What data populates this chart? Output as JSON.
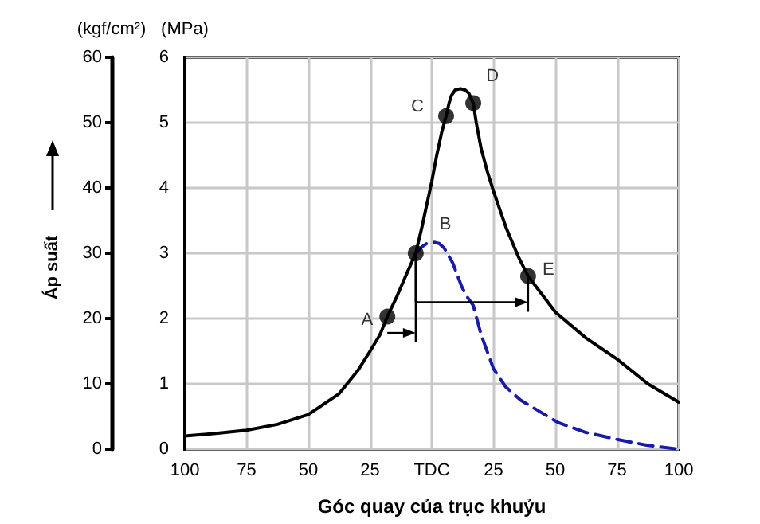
{
  "chart_data": {
    "type": "line",
    "xlabel": "Góc quay của trục khuỷu",
    "ylabel": "(MPa)",
    "y2label": "(kgf/cm²)",
    "xlim": [
      -100,
      100
    ],
    "xticks": [
      {
        "value": -100,
        "label": "100"
      },
      {
        "value": -75,
        "label": "75"
      },
      {
        "value": -50,
        "label": "50"
      },
      {
        "value": -25,
        "label": "25"
      },
      {
        "value": 0,
        "label": "TDC"
      },
      {
        "value": 25,
        "label": "25"
      },
      {
        "value": 50,
        "label": "50"
      },
      {
        "value": 75,
        "label": "75"
      },
      {
        "value": 100,
        "label": "100"
      }
    ],
    "ylim": [
      0,
      6
    ],
    "yticks": [
      0,
      1,
      2,
      3,
      4,
      5,
      6
    ],
    "y2lim": [
      0,
      60
    ],
    "y2ticks": [
      0,
      10,
      20,
      30,
      40,
      50,
      60
    ],
    "grid": true,
    "series": [
      {
        "type": "line",
        "color": "#000000",
        "line_style": "solid",
        "marker": "none",
        "x": [
          -100,
          -87.5,
          -75,
          -62.5,
          -50,
          -37.5,
          -30,
          -25,
          -21,
          -18,
          -14,
          -10,
          -6.5,
          -4,
          -2,
          0,
          2,
          4,
          5.8,
          7,
          8,
          9.5,
          11.6,
          13.5,
          15,
          16.8,
          18,
          20,
          22.5,
          25,
          30,
          35,
          39,
          45,
          50,
          62.5,
          75,
          87.5,
          100
        ],
        "values": [
          0.2,
          0.24,
          0.29,
          0.38,
          0.53,
          0.85,
          1.2,
          1.5,
          1.75,
          2.03,
          2.35,
          2.7,
          3.0,
          3.4,
          3.75,
          4.1,
          4.5,
          4.85,
          5.1,
          5.3,
          5.42,
          5.5,
          5.52,
          5.5,
          5.45,
          5.3,
          5.0,
          4.6,
          4.25,
          3.95,
          3.4,
          2.95,
          2.65,
          2.35,
          2.1,
          1.7,
          1.38,
          1.0,
          0.72
        ]
      },
      {
        "type": "line",
        "color": "#1a1aa8",
        "line_style": "dashed",
        "marker": "none",
        "x": [
          -6.5,
          -4,
          -2,
          0.6,
          3,
          5,
          7,
          8.5,
          10,
          12,
          14,
          16.8,
          20,
          25,
          30,
          36,
          51,
          62,
          75,
          87,
          100
        ],
        "values": [
          3.0,
          3.1,
          3.15,
          3.17,
          3.15,
          3.08,
          2.95,
          2.85,
          2.7,
          2.5,
          2.35,
          2.2,
          1.75,
          1.23,
          0.95,
          0.75,
          0.41,
          0.26,
          0.15,
          0.06,
          0
        ]
      },
      {
        "type": "scatter",
        "color": "#000000",
        "marker": "circle",
        "x": [
          -18,
          -6.5,
          5.8,
          16.8,
          39
        ],
        "values": [
          2.03,
          3.0,
          5.1,
          5.3,
          2.65
        ]
      }
    ],
    "annotations": [
      {
        "text": "A",
        "x": -18,
        "y": 2.03
      },
      {
        "text": "B",
        "x": -6.5,
        "y": 3.0
      },
      {
        "text": "C",
        "x": 5.8,
        "y": 5.1
      },
      {
        "text": "D",
        "x": 16.8,
        "y": 5.3
      },
      {
        "text": "E",
        "x": 39,
        "y": 2.65
      },
      "Áp suất"
    ]
  }
}
